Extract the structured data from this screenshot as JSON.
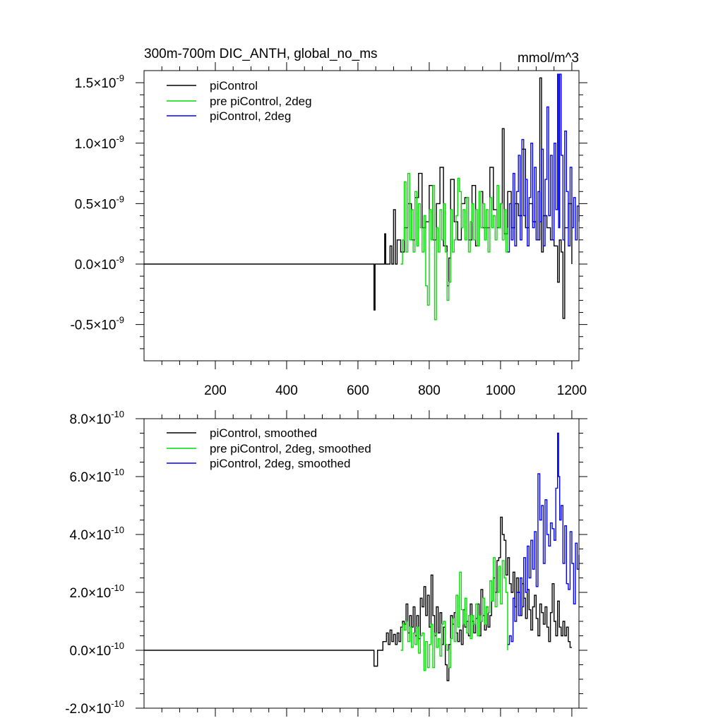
{
  "chart_data": [
    {
      "type": "line",
      "panel": "top",
      "title": "300m-700m DIC_ANTH, global_no_ms",
      "units": "mmol/m^3",
      "xlabel": "",
      "ylabel": "",
      "xlim": [
        0,
        1220
      ],
      "ylim": [
        -0.8,
        1.6
      ],
      "y_exponent": "-9",
      "x_ticks": [
        200,
        400,
        600,
        800,
        1000,
        1200
      ],
      "x_tick_labels": [
        "200",
        "400",
        "600",
        "800",
        "1000",
        "1200"
      ],
      "y_ticks": [
        1.5,
        1.0,
        0.5,
        0.0,
        -0.5
      ],
      "y_tick_labels": [
        "1.5",
        "1.0",
        "0.5",
        "0.0",
        "-0.5"
      ],
      "legend_position": "top-left",
      "series": [
        {
          "name": "piControl",
          "color": "#000000",
          "x": [
            0,
            620,
            640,
            645,
            648,
            660,
            675,
            678,
            690,
            695,
            700,
            705,
            710,
            720,
            730,
            740,
            750,
            760,
            770,
            780,
            790,
            800,
            810,
            820,
            830,
            840,
            850,
            855,
            860,
            870,
            880,
            890,
            900,
            910,
            920,
            930,
            940,
            950,
            960,
            970,
            980,
            990,
            1000,
            1005,
            1010,
            1020,
            1030,
            1040,
            1050,
            1060,
            1070,
            1080,
            1090,
            1100,
            1110,
            1115,
            1120,
            1130,
            1140,
            1150,
            1160,
            1165,
            1170,
            1175,
            1180,
            1190,
            1200
          ],
          "y": [
            0,
            0,
            0,
            -0.38,
            0,
            0,
            0.25,
            0,
            0.15,
            0,
            0.45,
            0,
            0.2,
            0.1,
            0.3,
            0.5,
            0.2,
            0.55,
            0.75,
            0.3,
            0.35,
            0.65,
            0.2,
            0.5,
            0.8,
            0.15,
            -0.18,
            0.05,
            0.7,
            0.35,
            0.2,
            0.5,
            0.55,
            0.2,
            0.65,
            0.15,
            0.6,
            0.3,
            0.3,
            0.8,
            0.45,
            0.3,
            0.5,
            1.12,
            0.25,
            0.6,
            0.3,
            0.5,
            0.4,
            0.95,
            0.3,
            0.5,
            0.35,
            0.2,
            1.54,
            0.1,
            0.4,
            0.3,
            0.2,
            0.15,
            -0.15,
            0.2,
            0.1,
            -0.45,
            0.3,
            0.5,
            0
          ]
        },
        {
          "name": "pre piControl, 2deg",
          "color": "#00dd00",
          "x": [
            720,
            725,
            730,
            735,
            740,
            745,
            750,
            755,
            760,
            765,
            770,
            775,
            780,
            785,
            790,
            795,
            800,
            805,
            810,
            815,
            820,
            825,
            830,
            835,
            840,
            845,
            850,
            855,
            860,
            865,
            870,
            875,
            880,
            885,
            890,
            895,
            900,
            905,
            910,
            915,
            920,
            925,
            930,
            935,
            940,
            945,
            950,
            955,
            960,
            965,
            970,
            975,
            980,
            985,
            990,
            995,
            1000,
            1005,
            1010,
            1015,
            1020
          ],
          "y": [
            0,
            0.2,
            0.68,
            0.1,
            0.75,
            0.2,
            0.45,
            0.1,
            0.6,
            0.15,
            0.5,
            0.3,
            0.1,
            0.4,
            -0.18,
            -0.34,
            0.45,
            0.2,
            0.65,
            -0.46,
            0.3,
            0.1,
            0.45,
            0.2,
            0.5,
            0.1,
            -0.3,
            -0.15,
            0.45,
            0.1,
            0.2,
            0.4,
            0.71,
            0.6,
            0.3,
            0.45,
            0.2,
            0.55,
            0.1,
            0.35,
            0.5,
            0.2,
            0.45,
            0.15,
            0.6,
            0.3,
            0.5,
            0.2,
            0.45,
            0.1,
            0.55,
            0.3,
            0.4,
            0.2,
            0.65,
            0.3,
            0.5,
            0.2,
            0.45,
            0.1,
            0.3
          ]
        },
        {
          "name": "piControl, 2deg",
          "color": "#0000ff",
          "x": [
            1020,
            1025,
            1030,
            1035,
            1040,
            1045,
            1050,
            1055,
            1060,
            1065,
            1070,
            1075,
            1080,
            1085,
            1090,
            1095,
            1100,
            1105,
            1110,
            1115,
            1120,
            1125,
            1130,
            1135,
            1140,
            1145,
            1150,
            1155,
            1160,
            1163,
            1166,
            1170,
            1175,
            1180,
            1185,
            1190,
            1195,
            1200,
            1205,
            1210,
            1215,
            1220
          ],
          "y": [
            0.1,
            0.5,
            0.2,
            0.75,
            0.15,
            0.6,
            0.9,
            0.2,
            1.03,
            0.4,
            0.7,
            0.15,
            0.55,
            1.0,
            0.3,
            0.8,
            0.2,
            0.6,
            0.35,
            0.95,
            0.15,
            0.7,
            1.3,
            0.4,
            0.9,
            0.2,
            1.0,
            0.45,
            1.57,
            0.3,
            1.57,
            0.9,
            0.2,
            1.1,
            0.6,
            0.15,
            0.8,
            0.3,
            0.55,
            0.2,
            0.48,
            0.35
          ]
        }
      ]
    },
    {
      "type": "line",
      "panel": "bottom",
      "title": "",
      "xlabel": "",
      "ylabel": "",
      "xlim": [
        0,
        1220
      ],
      "ylim": [
        -2.0,
        8.0
      ],
      "y_exponent": "-10",
      "x_ticks": [
        200,
        400,
        600,
        800,
        1000,
        1200
      ],
      "y_ticks": [
        8.0,
        6.0,
        4.0,
        2.0,
        0.0,
        -2.0
      ],
      "y_tick_labels": [
        "8.0",
        "6.0",
        "4.0",
        "2.0",
        "0.0",
        "-2.0"
      ],
      "legend_position": "top-left",
      "series": [
        {
          "name": "piControl, smoothed",
          "color": "#000000",
          "x": [
            0,
            640,
            645,
            650,
            655,
            660,
            665,
            670,
            675,
            680,
            685,
            690,
            695,
            700,
            705,
            710,
            715,
            720,
            725,
            730,
            735,
            740,
            745,
            750,
            755,
            760,
            765,
            770,
            775,
            780,
            785,
            790,
            795,
            800,
            805,
            810,
            815,
            820,
            825,
            830,
            835,
            840,
            845,
            850,
            855,
            860,
            865,
            870,
            875,
            880,
            885,
            890,
            895,
            900,
            905,
            910,
            915,
            920,
            925,
            930,
            935,
            940,
            945,
            950,
            955,
            960,
            965,
            970,
            975,
            980,
            985,
            990,
            995,
            1000,
            1005,
            1010,
            1015,
            1020,
            1025,
            1030,
            1035,
            1040,
            1045,
            1050,
            1055,
            1060,
            1065,
            1070,
            1075,
            1080,
            1085,
            1090,
            1095,
            1100,
            1105,
            1110,
            1115,
            1120,
            1125,
            1130,
            1135,
            1140,
            1145,
            1150,
            1155,
            1160,
            1165,
            1170,
            1175,
            1180,
            1185,
            1190,
            1195,
            1200
          ],
          "y": [
            0,
            0,
            -0.55,
            -0.55,
            0,
            0,
            0,
            0.3,
            0.3,
            0.6,
            0.2,
            0.7,
            0.3,
            0.55,
            0.2,
            0.6,
            0.3,
            0.8,
            1.0,
            0.9,
            1.6,
            0.6,
            1.2,
            0.8,
            1.5,
            0.5,
            1.2,
            0.4,
            1.8,
            1.5,
            2.2,
            1.2,
            1.9,
            0.8,
            2.6,
            1.2,
            0.5,
            1.5,
            0.6,
            1.3,
            0.2,
            0.8,
            -0.5,
            -1.05,
            0.2,
            1.2,
            0.9,
            1.3,
            0.6,
            0.3,
            0.7,
            0.2,
            1.4,
            0.8,
            1.0,
            0.5,
            1.6,
            1.0,
            0.6,
            1.1,
            1.6,
            0.5,
            2.1,
            1.2,
            0.7,
            1.5,
            0.8,
            1.2,
            1.7,
            2.5,
            2.0,
            3.1,
            3.2,
            4.6,
            4.0,
            3.8,
            2.6,
            3.2,
            2.3,
            2.0,
            2.7,
            1.5,
            2.5,
            2.0,
            1.2,
            2.3,
            1.8,
            1.1,
            2.1,
            1.4,
            0.7,
            1.5,
            1.9,
            1.1,
            0.5,
            1.6,
            1.3,
            0.9,
            1.5,
            0.8,
            0.3,
            1.3,
            2.3,
            1.0,
            0.5,
            1.7,
            0.8,
            0.5,
            1.0,
            0.5,
            0.8,
            0.3,
            0.1,
            0.1
          ]
        },
        {
          "name": "pre piControl, 2deg, smoothed",
          "color": "#00dd00",
          "x": [
            720,
            725,
            730,
            735,
            740,
            745,
            750,
            755,
            760,
            765,
            770,
            775,
            780,
            785,
            790,
            795,
            800,
            805,
            810,
            815,
            820,
            825,
            830,
            835,
            840,
            845,
            850,
            855,
            860,
            865,
            870,
            875,
            880,
            885,
            890,
            895,
            900,
            905,
            910,
            915,
            920,
            925,
            930,
            935,
            940,
            945,
            950,
            955,
            960,
            965,
            970,
            975,
            980,
            985,
            990,
            995,
            1000,
            1005,
            1010,
            1015,
            1020
          ],
          "y": [
            0,
            0.9,
            0.7,
            1.0,
            0.3,
            0.8,
            0.1,
            0.6,
            0.2,
            0.8,
            -0.1,
            0.5,
            0.6,
            -0.7,
            0.3,
            -0.6,
            0.2,
            0.9,
            -0.6,
            0.6,
            0.1,
            0.4,
            -0.2,
            0.9,
            1.0,
            0.2,
            0.0,
            -0.6,
            0.4,
            1.1,
            0.3,
            1.9,
            0.8,
            2.7,
            1.4,
            0.9,
            1.8,
            0.6,
            1.2,
            0.4,
            1.2,
            0.9,
            1.6,
            0.5,
            1.2,
            1.0,
            1.8,
            0.9,
            1.5,
            1.3,
            2.4,
            1.7,
            3.2,
            1.5,
            2.0,
            2.9,
            1.6,
            3.1,
            2.5,
            2.0,
            0.0
          ]
        },
        {
          "name": "piControl, 2deg, smoothed",
          "color": "#0000ff",
          "x": [
            1020,
            1025,
            1030,
            1035,
            1040,
            1045,
            1050,
            1055,
            1060,
            1065,
            1070,
            1075,
            1080,
            1085,
            1090,
            1095,
            1100,
            1105,
            1110,
            1115,
            1120,
            1125,
            1130,
            1135,
            1140,
            1145,
            1150,
            1155,
            1160,
            1163,
            1166,
            1170,
            1175,
            1180,
            1185,
            1190,
            1195,
            1200,
            1205,
            1210,
            1215,
            1220
          ],
          "y": [
            0.2,
            0.5,
            0.3,
            1.8,
            1.0,
            2.0,
            1.2,
            2.5,
            1.5,
            3.2,
            2.0,
            3.6,
            2.5,
            3.8,
            2.8,
            4.1,
            2.2,
            6.1,
            4.5,
            5.0,
            3.0,
            5.2,
            4.0,
            3.6,
            4.4,
            4.2,
            3.8,
            5.6,
            7.5,
            6.0,
            4.5,
            5.0,
            3.0,
            4.3,
            2.3,
            2.1,
            4.1,
            3.0,
            1.6,
            3.7,
            2.8,
            3.3
          ]
        }
      ]
    }
  ]
}
